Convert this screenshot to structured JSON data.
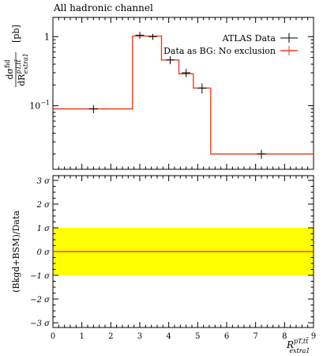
{
  "chart_data": [
    {
      "type": "line",
      "title": "All hadronic channel",
      "ylabel": "dσ^fid / dR^{pT,tt̄}_extra1 [pb]",
      "ylabel_parts": {
        "num": "dσ",
        "num_sup": "fid",
        "den": "dR",
        "den_sup": "pT,tt̄",
        "den_sub": "extra1",
        "unit": "[pb]"
      },
      "yscale": "log",
      "xlim": [
        0,
        9
      ],
      "ylim": [
        0.012,
        1.9
      ],
      "y_ticks": [
        {
          "value": 0.1,
          "label": "10",
          "sup": "−1"
        },
        {
          "value": 1,
          "label": "1",
          "sup": ""
        }
      ],
      "legend": "top-right",
      "series": [
        {
          "name": "ATLAS Data",
          "color": "#000000",
          "style": "points",
          "points": [
            {
              "x": 1.4,
              "y": 0.09,
              "xerr": 0.15,
              "yerr": 0.012
            },
            {
              "x": 3.0,
              "y": 1.05,
              "xerr": 0.15,
              "yerr": 0.12
            },
            {
              "x": 3.45,
              "y": 1.0,
              "xerr": 0.15,
              "yerr": 0.1
            },
            {
              "x": 4.05,
              "y": 0.46,
              "xerr": 0.15,
              "yerr": 0.06
            },
            {
              "x": 4.6,
              "y": 0.3,
              "xerr": 0.15,
              "yerr": 0.04
            },
            {
              "x": 5.15,
              "y": 0.18,
              "xerr": 0.15,
              "yerr": 0.03
            },
            {
              "x": 7.2,
              "y": 0.02,
              "xerr": 0.15,
              "yerr": 0.003
            }
          ]
        },
        {
          "name": "Data as BG: No exclusion",
          "color": "#e8411e",
          "style": "step",
          "bins": [
            {
              "x0": 0.0,
              "x1": 2.75,
              "y": 0.09
            },
            {
              "x0": 2.75,
              "x1": 3.75,
              "y": 1.02
            },
            {
              "x0": 3.75,
              "x1": 4.35,
              "y": 0.46
            },
            {
              "x0": 4.35,
              "x1": 4.85,
              "y": 0.29
            },
            {
              "x0": 4.85,
              "x1": 5.45,
              "y": 0.18
            },
            {
              "x0": 5.45,
              "x1": 9.0,
              "y": 0.02
            }
          ]
        }
      ]
    },
    {
      "type": "area",
      "ylabel": "(Bkgd+BSM)/Data",
      "xlabel": "R^{pT,tt̄}_extra1",
      "xlabel_parts": {
        "base": "R",
        "sup": "pT,tt̄",
        "sub": "extra1"
      },
      "xlim": [
        0,
        9
      ],
      "ylim": [
        -3.2,
        3.2
      ],
      "x_ticks": [
        "0",
        "1",
        "2",
        "3",
        "4",
        "5",
        "6",
        "7",
        "8",
        "9"
      ],
      "y_ticks": [
        {
          "value": -3,
          "label": "−3 σ"
        },
        {
          "value": -2,
          "label": "−2 σ"
        },
        {
          "value": -1,
          "label": "−1 σ"
        },
        {
          "value": 0,
          "label": "0 σ"
        },
        {
          "value": 1,
          "label": "1 σ"
        },
        {
          "value": 2,
          "label": "2 σ"
        },
        {
          "value": 3,
          "label": "3 σ"
        }
      ],
      "band": {
        "low": -1,
        "high": 1,
        "color": "#ffff00"
      },
      "line": {
        "y": 0,
        "color": "#e8411e"
      }
    }
  ]
}
